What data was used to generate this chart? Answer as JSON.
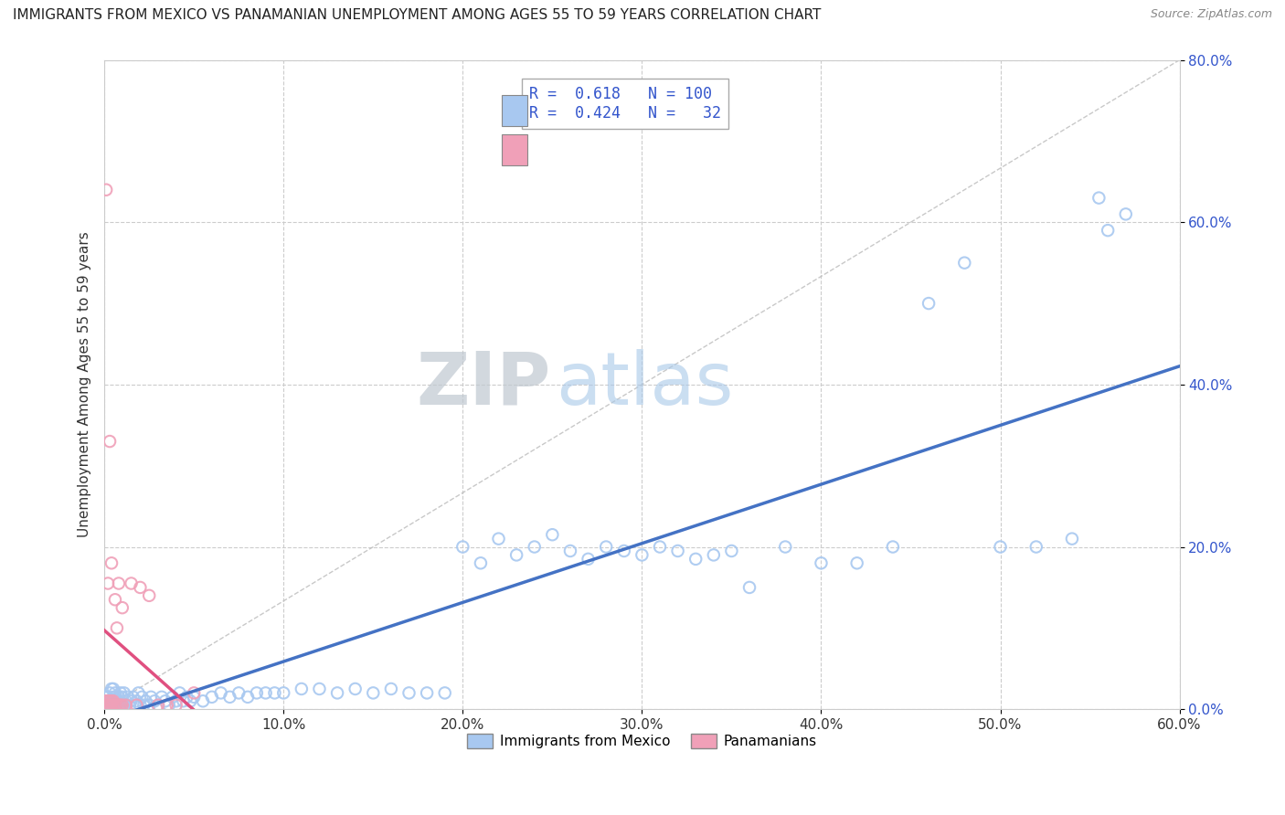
{
  "title": "IMMIGRANTS FROM MEXICO VS PANAMANIAN UNEMPLOYMENT AMONG AGES 55 TO 59 YEARS CORRELATION CHART",
  "source": "Source: ZipAtlas.com",
  "ylabel": "Unemployment Among Ages 55 to 59 years",
  "xlim": [
    0.0,
    0.6
  ],
  "ylim": [
    0.0,
    0.8
  ],
  "xticks": [
    0.0,
    0.1,
    0.2,
    0.3,
    0.4,
    0.5,
    0.6
  ],
  "yticks": [
    0.0,
    0.2,
    0.4,
    0.6,
    0.8
  ],
  "xtick_labels": [
    "0.0%",
    "10.0%",
    "20.0%",
    "30.0%",
    "40.0%",
    "50.0%",
    "60.0%"
  ],
  "ytick_labels": [
    "0.0%",
    "20.0%",
    "40.0%",
    "60.0%",
    "80.0%"
  ],
  "blue_color": "#A8C8F0",
  "pink_color": "#F0A0B8",
  "blue_line_color": "#4472C4",
  "pink_line_color": "#E05080",
  "R_blue": 0.618,
  "N_blue": 100,
  "R_pink": 0.424,
  "N_pink": 32,
  "legend_labels": [
    "Immigrants from Mexico",
    "Panamanians"
  ],
  "watermark_zip": "ZIP",
  "watermark_atlas": "atlas",
  "background_color": "#ffffff",
  "grid_color": "#cccccc",
  "blue_scatter_x": [
    0.001,
    0.001,
    0.002,
    0.002,
    0.003,
    0.003,
    0.003,
    0.004,
    0.004,
    0.004,
    0.005,
    0.005,
    0.005,
    0.006,
    0.006,
    0.006,
    0.007,
    0.007,
    0.008,
    0.008,
    0.009,
    0.009,
    0.01,
    0.01,
    0.011,
    0.011,
    0.012,
    0.013,
    0.014,
    0.015,
    0.016,
    0.017,
    0.018,
    0.019,
    0.02,
    0.021,
    0.022,
    0.023,
    0.025,
    0.026,
    0.028,
    0.03,
    0.032,
    0.034,
    0.036,
    0.038,
    0.04,
    0.042,
    0.044,
    0.046,
    0.048,
    0.05,
    0.055,
    0.06,
    0.065,
    0.07,
    0.075,
    0.08,
    0.085,
    0.09,
    0.095,
    0.1,
    0.11,
    0.12,
    0.13,
    0.14,
    0.15,
    0.16,
    0.17,
    0.18,
    0.19,
    0.2,
    0.21,
    0.22,
    0.23,
    0.24,
    0.25,
    0.26,
    0.27,
    0.28,
    0.29,
    0.3,
    0.31,
    0.32,
    0.33,
    0.34,
    0.35,
    0.36,
    0.38,
    0.4,
    0.42,
    0.44,
    0.46,
    0.48,
    0.5,
    0.52,
    0.54,
    0.555,
    0.56,
    0.57
  ],
  "blue_scatter_y": [
    0.005,
    0.01,
    0.005,
    0.015,
    0.005,
    0.01,
    0.02,
    0.005,
    0.01,
    0.025,
    0.005,
    0.015,
    0.025,
    0.005,
    0.015,
    0.02,
    0.005,
    0.01,
    0.005,
    0.015,
    0.005,
    0.02,
    0.005,
    0.015,
    0.005,
    0.02,
    0.01,
    0.015,
    0.005,
    0.01,
    0.015,
    0.005,
    0.01,
    0.02,
    0.005,
    0.015,
    0.005,
    0.01,
    0.005,
    0.015,
    0.01,
    0.005,
    0.015,
    0.01,
    0.005,
    0.015,
    0.01,
    0.02,
    0.01,
    0.015,
    0.01,
    0.015,
    0.01,
    0.015,
    0.02,
    0.015,
    0.02,
    0.015,
    0.02,
    0.02,
    0.02,
    0.02,
    0.025,
    0.025,
    0.02,
    0.025,
    0.02,
    0.025,
    0.02,
    0.02,
    0.02,
    0.2,
    0.18,
    0.21,
    0.19,
    0.2,
    0.215,
    0.195,
    0.185,
    0.2,
    0.195,
    0.19,
    0.2,
    0.195,
    0.185,
    0.19,
    0.195,
    0.15,
    0.2,
    0.18,
    0.18,
    0.2,
    0.5,
    0.55,
    0.2,
    0.2,
    0.21,
    0.63,
    0.59,
    0.61
  ],
  "pink_scatter_x": [
    0.001,
    0.001,
    0.001,
    0.002,
    0.002,
    0.002,
    0.003,
    0.003,
    0.003,
    0.004,
    0.004,
    0.004,
    0.005,
    0.005,
    0.006,
    0.006,
    0.007,
    0.007,
    0.008,
    0.008,
    0.009,
    0.01,
    0.01,
    0.012,
    0.015,
    0.018,
    0.02,
    0.025,
    0.03,
    0.035,
    0.04,
    0.05
  ],
  "pink_scatter_y": [
    0.005,
    0.01,
    0.64,
    0.005,
    0.01,
    0.155,
    0.005,
    0.01,
    0.33,
    0.005,
    0.01,
    0.18,
    0.005,
    0.01,
    0.005,
    0.135,
    0.005,
    0.1,
    0.005,
    0.155,
    0.005,
    0.005,
    0.125,
    0.005,
    0.155,
    0.005,
    0.15,
    0.14,
    0.005,
    0.005,
    0.005,
    0.02
  ]
}
